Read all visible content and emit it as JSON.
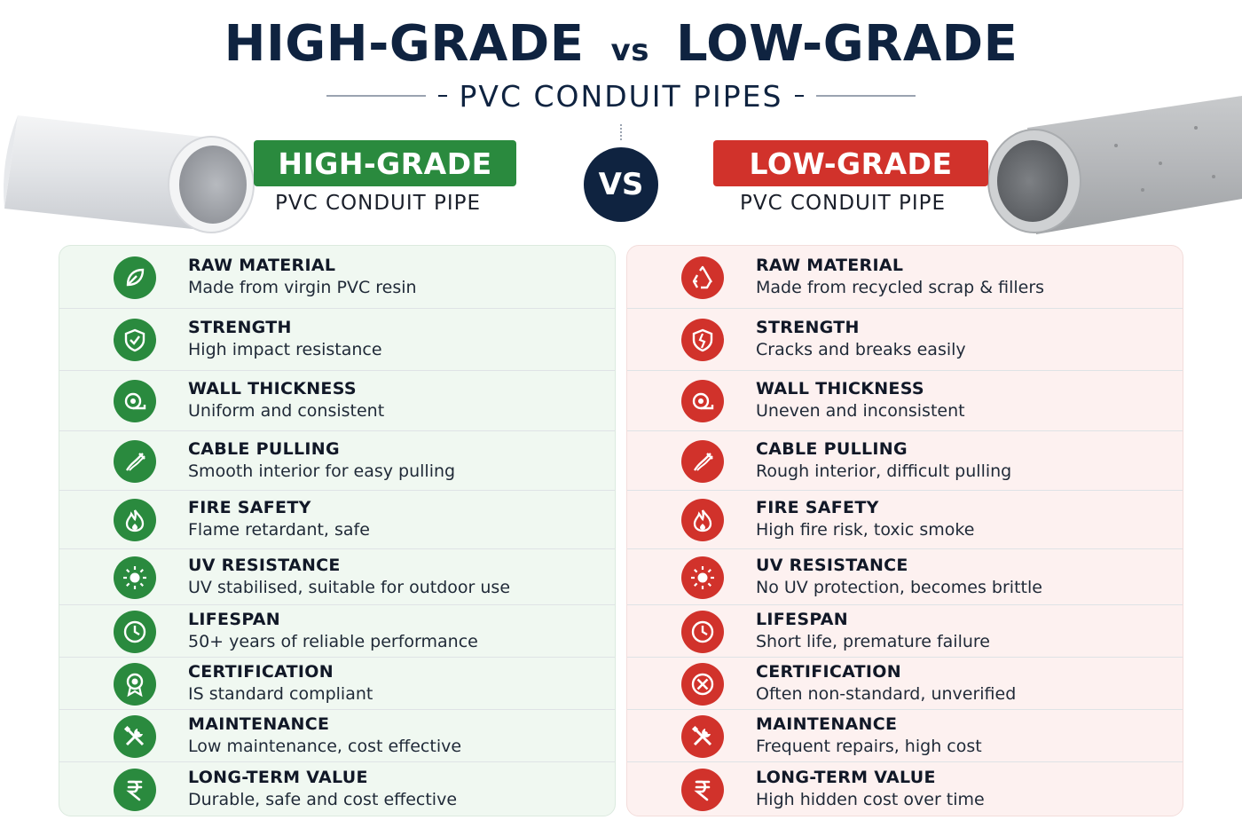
{
  "header": {
    "title_left": "HIGH-GRADE",
    "title_vs": "vs",
    "title_right": "LOW-GRADE",
    "subtitle": "PVC CONDUIT PIPES"
  },
  "vs_label": "VS",
  "colors": {
    "good": "#2a8a3e",
    "bad": "#d1322b",
    "navy": "#0f2340"
  },
  "high_grade": {
    "banner": "HIGH-GRADE",
    "subtitle": "PVC CONDUIT PIPE",
    "rows": [
      {
        "icon": "leaf-icon",
        "title": "RAW MATERIAL",
        "desc": "Made from virgin PVC resin"
      },
      {
        "icon": "shield-icon",
        "title": "STRENGTH",
        "desc": "High impact resistance"
      },
      {
        "icon": "tape-icon",
        "title": "WALL THICKNESS",
        "desc": "Uniform and consistent"
      },
      {
        "icon": "cable-icon",
        "title": "CABLE PULLING",
        "desc": "Smooth interior for easy pulling"
      },
      {
        "icon": "flame-icon",
        "title": "FIRE SAFETY",
        "desc": "Flame retardant, safe"
      },
      {
        "icon": "sun-icon",
        "title": "UV RESISTANCE",
        "desc": "UV stabilised, suitable for outdoor use"
      },
      {
        "icon": "clock-icon",
        "title": "LIFESPAN",
        "desc": "50+ years of reliable performance"
      },
      {
        "icon": "badge-icon",
        "title": "CERTIFICATION",
        "desc": "IS standard compliant"
      },
      {
        "icon": "tools-icon",
        "title": "MAINTENANCE",
        "desc": "Low maintenance, cost effective"
      },
      {
        "icon": "rupee-icon",
        "title": "LONG-TERM VALUE",
        "desc": "Durable, safe and cost effective"
      }
    ]
  },
  "low_grade": {
    "banner": "LOW-GRADE",
    "subtitle": "PVC CONDUIT PIPE",
    "rows": [
      {
        "icon": "recycle-icon",
        "title": "RAW MATERIAL",
        "desc": "Made from recycled scrap & fillers"
      },
      {
        "icon": "broken-shield-icon",
        "title": "STRENGTH",
        "desc": "Cracks and breaks easily"
      },
      {
        "icon": "tape-icon",
        "title": "WALL THICKNESS",
        "desc": "Uneven and inconsistent"
      },
      {
        "icon": "cable-icon",
        "title": "CABLE PULLING",
        "desc": "Rough interior, difficult pulling"
      },
      {
        "icon": "flame-icon",
        "title": "FIRE SAFETY",
        "desc": "High fire risk, toxic smoke"
      },
      {
        "icon": "sun-icon",
        "title": "UV RESISTANCE",
        "desc": "No UV protection, becomes brittle"
      },
      {
        "icon": "clock-icon",
        "title": "LIFESPAN",
        "desc": "Short life, premature failure"
      },
      {
        "icon": "cross-circle-icon",
        "title": "CERTIFICATION",
        "desc": "Often non-standard, unverified"
      },
      {
        "icon": "tools-icon",
        "title": "MAINTENANCE",
        "desc": "Frequent repairs, high cost"
      },
      {
        "icon": "rupee-icon",
        "title": "LONG-TERM VALUE",
        "desc": "High hidden cost over time"
      }
    ]
  }
}
